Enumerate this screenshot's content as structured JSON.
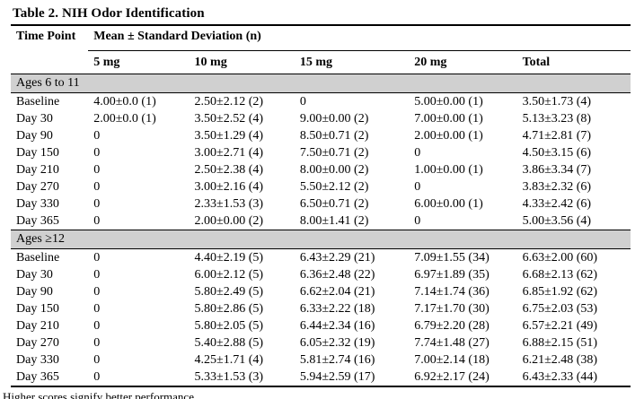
{
  "title": "Table 2. NIH Odor Identification",
  "footnote": "Higher scores signify better performance.",
  "colors": {
    "section_band": "#d0d0d0",
    "rule": "#000000"
  },
  "table": {
    "row_header": "Time Point",
    "span_header": "Mean ± Standard Deviation (n)",
    "dose_headers": [
      "5 mg",
      "10 mg",
      "15 mg",
      "20 mg",
      "Total"
    ],
    "sections": [
      {
        "label": "Ages 6 to 11",
        "rows": [
          {
            "time": "Baseline",
            "values": [
              "4.00±0.0 (1)",
              "2.50±2.12 (2)",
              "0",
              "5.00±0.00 (1)",
              "3.50±1.73 (4)"
            ]
          },
          {
            "time": "Day 30",
            "values": [
              "2.00±0.0 (1)",
              "3.50±2.52 (4)",
              "9.00±0.00 (2)",
              "7.00±0.00 (1)",
              "5.13±3.23 (8)"
            ]
          },
          {
            "time": "Day 90",
            "values": [
              "0",
              "3.50±1.29 (4)",
              "8.50±0.71 (2)",
              "2.00±0.00 (1)",
              "4.71±2.81 (7)"
            ]
          },
          {
            "time": "Day 150",
            "values": [
              "0",
              "3.00±2.71 (4)",
              "7.50±0.71 (2)",
              "0",
              "4.50±3.15 (6)"
            ]
          },
          {
            "time": "Day 210",
            "values": [
              "0",
              "2.50±2.38 (4)",
              "8.00±0.00 (2)",
              "1.00±0.00 (1)",
              "3.86±3.34 (7)"
            ]
          },
          {
            "time": "Day 270",
            "values": [
              "0",
              "3.00±2.16 (4)",
              "5.50±2.12 (2)",
              "0",
              "3.83±2.32 (6)"
            ]
          },
          {
            "time": "Day 330",
            "values": [
              "0",
              "2.33±1.53 (3)",
              "6.50±0.71 (2)",
              "6.00±0.00 (1)",
              "4.33±2.42 (6)"
            ]
          },
          {
            "time": "Day 365",
            "values": [
              "0",
              "2.00±0.00 (2)",
              "8.00±1.41 (2)",
              "0",
              "5.00±3.56 (4)"
            ]
          }
        ]
      },
      {
        "label": "Ages ≥12",
        "rows": [
          {
            "time": "Baseline",
            "values": [
              "0",
              "4.40±2.19 (5)",
              "6.43±2.29 (21)",
              "7.09±1.55 (34)",
              "6.63±2.00 (60)"
            ]
          },
          {
            "time": "Day 30",
            "values": [
              "0",
              "6.00±2.12 (5)",
              "6.36±2.48 (22)",
              "6.97±1.89 (35)",
              "6.68±2.13 (62)"
            ]
          },
          {
            "time": "Day 90",
            "values": [
              "0",
              "5.80±2.49 (5)",
              "6.62±2.04 (21)",
              "7.14±1.74 (36)",
              "6.85±1.92 (62)"
            ]
          },
          {
            "time": "Day 150",
            "values": [
              "0",
              "5.80±2.86 (5)",
              "6.33±2.22 (18)",
              "7.17±1.70 (30)",
              "6.75±2.03 (53)"
            ]
          },
          {
            "time": "Day 210",
            "values": [
              "0",
              "5.80±2.05 (5)",
              "6.44±2.34 (16)",
              "6.79±2.20 (28)",
              "6.57±2.21 (49)"
            ]
          },
          {
            "time": "Day 270",
            "values": [
              "0",
              "5.40±2.88 (5)",
              "6.05±2.32 (19)",
              "7.74±1.48 (27)",
              "6.88±2.15 (51)"
            ]
          },
          {
            "time": "Day 330",
            "values": [
              "0",
              "4.25±1.71 (4)",
              "5.81±2.74 (16)",
              "7.00±2.14 (18)",
              "6.21±2.48 (38)"
            ]
          },
          {
            "time": "Day 365",
            "values": [
              "0",
              "5.33±1.53 (3)",
              "5.94±2.59 (17)",
              "6.92±2.17 (24)",
              "6.43±2.33 (44)"
            ]
          }
        ]
      }
    ]
  }
}
